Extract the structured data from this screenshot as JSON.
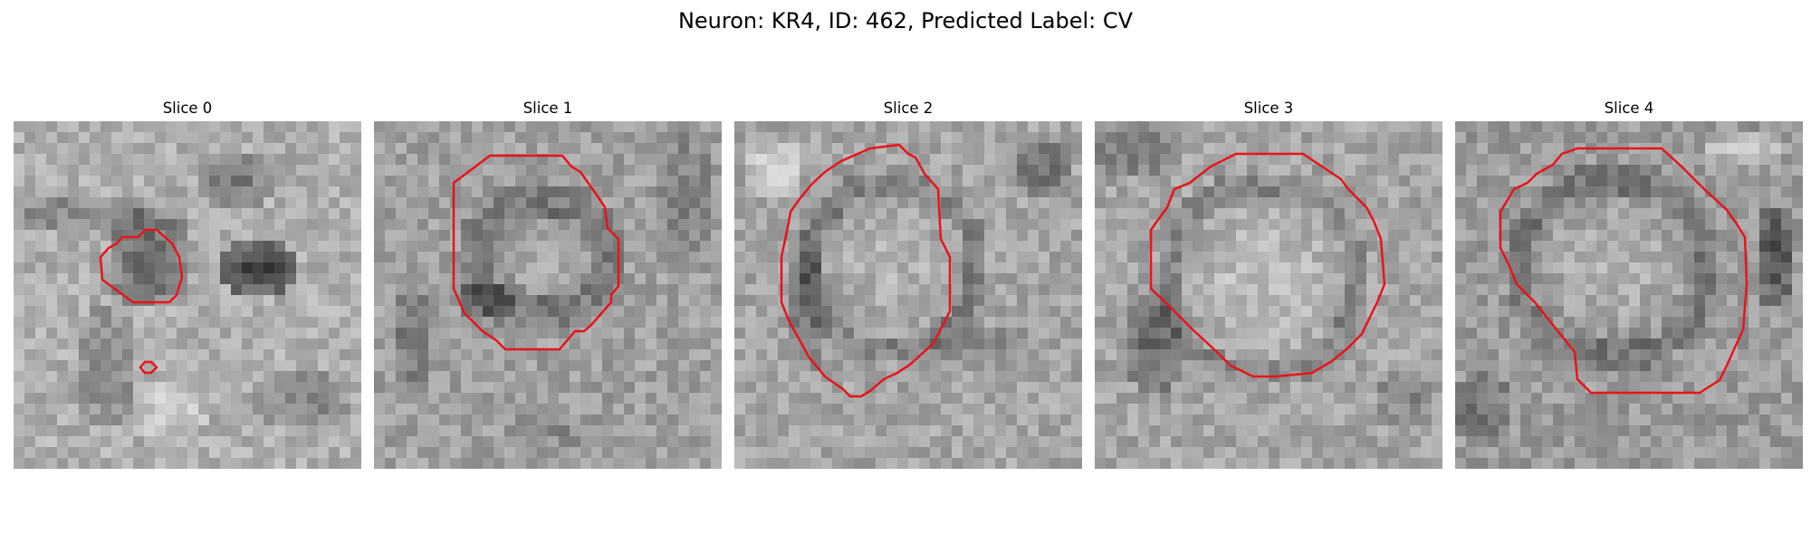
{
  "figure": {
    "title": "Neuron: KR4, ID: 462, Predicted Label: CV"
  },
  "panels": [
    {
      "title": "Slice 0"
    },
    {
      "title": "Slice 1"
    },
    {
      "title": "Slice 2"
    },
    {
      "title": "Slice 3"
    },
    {
      "title": "Slice 4"
    }
  ],
  "colors": {
    "contour": "#e8141a",
    "background": "#ffffff"
  }
}
